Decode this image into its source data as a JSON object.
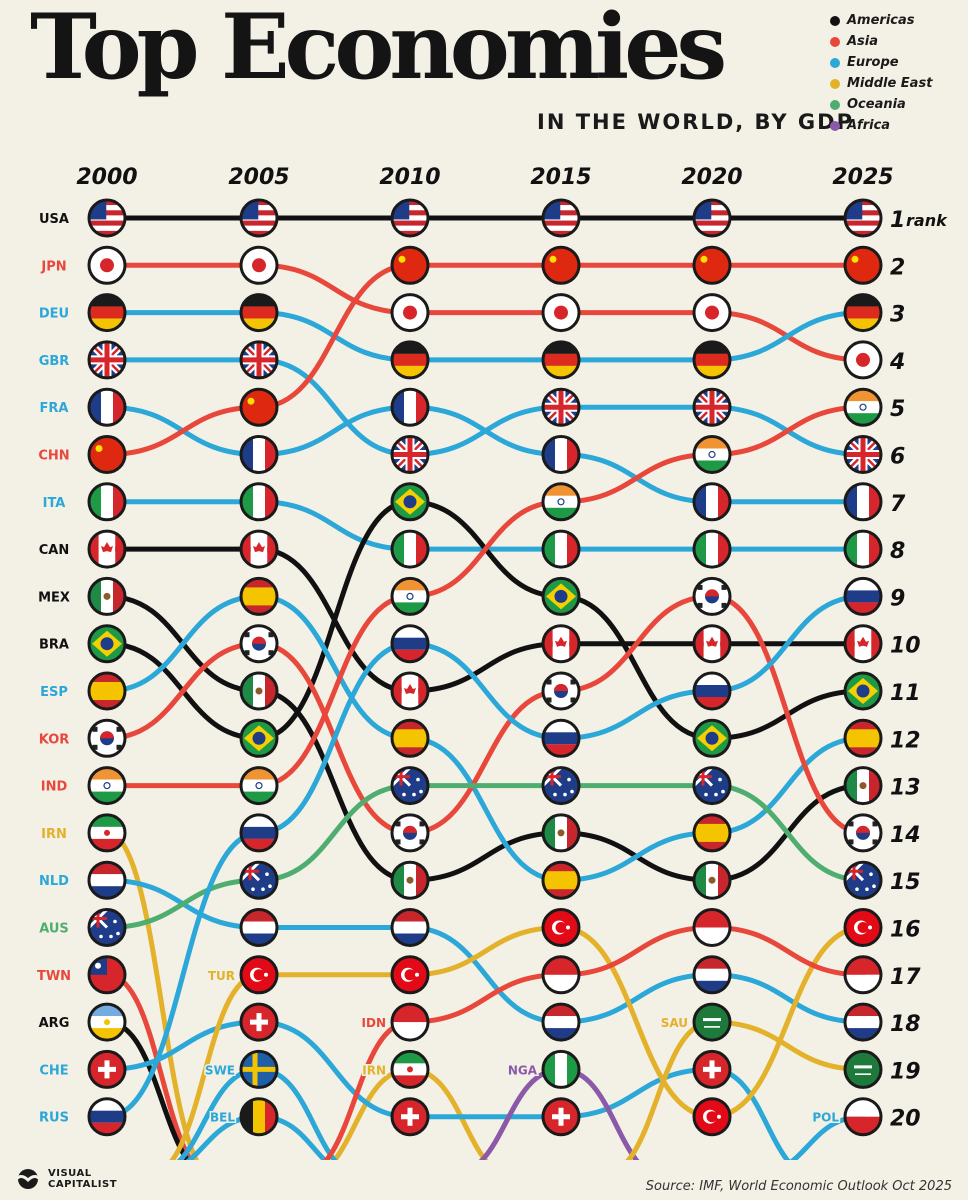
{
  "title": "Top Economies",
  "subtitle": "IN THE WORLD, BY GDP",
  "legend": [
    {
      "label": "Americas",
      "color": "#111111"
    },
    {
      "label": "Asia",
      "color": "#e8483b"
    },
    {
      "label": "Europe",
      "color": "#2ba7d8"
    },
    {
      "label": "Middle East",
      "color": "#e3b12a"
    },
    {
      "label": "Oceania",
      "color": "#4fae6f"
    },
    {
      "label": "Africa",
      "color": "#8a5aa8"
    }
  ],
  "brand": {
    "line1": "VISUAL",
    "line2": "CAPITALIST"
  },
  "source": "Source: IMF, World Economic Outlook Oct 2025",
  "chart_data": {
    "type": "bump",
    "x": [
      "2000",
      "2005",
      "2010",
      "2015",
      "2020",
      "2025"
    ],
    "ranks": [
      "1",
      "2",
      "3",
      "4",
      "5",
      "6",
      "7",
      "8",
      "9",
      "10",
      "11",
      "12",
      "13",
      "14",
      "15",
      "16",
      "17",
      "18",
      "19",
      "20"
    ],
    "rank_suffix": "rank",
    "row_labels_2000": [
      "USA",
      "JPN",
      "DEU",
      "GBR",
      "FRA",
      "CHN",
      "ITA",
      "CAN",
      "MEX",
      "BRA",
      "ESP",
      "KOR",
      "IND",
      "IRN",
      "NLD",
      "AUS",
      "TWN",
      "ARG",
      "CHE",
      "RUS"
    ],
    "entry_labels": [
      {
        "text": "TUR",
        "year": "2005",
        "rank": 17,
        "region": "Middle East"
      },
      {
        "text": "SWE",
        "year": "2005",
        "rank": 19,
        "region": "Europe"
      },
      {
        "text": "BEL",
        "year": "2005",
        "rank": 20,
        "region": "Europe"
      },
      {
        "text": "IDN",
        "year": "2010",
        "rank": 18,
        "region": "Asia"
      },
      {
        "text": "IRN",
        "year": "2010",
        "rank": 19,
        "region": "Middle East"
      },
      {
        "text": "NGA",
        "year": "2015",
        "rank": 19,
        "region": "Africa"
      },
      {
        "text": "SAU",
        "year": "2020",
        "rank": 18,
        "region": "Middle East"
      },
      {
        "text": "POL",
        "year": "2025",
        "rank": 20,
        "region": "Europe"
      }
    ],
    "series": [
      {
        "code": "USA",
        "region": "Americas",
        "ranks": [
          1,
          1,
          1,
          1,
          1,
          1
        ]
      },
      {
        "code": "JPN",
        "region": "Asia",
        "ranks": [
          2,
          2,
          3,
          3,
          3,
          4
        ]
      },
      {
        "code": "DEU",
        "region": "Europe",
        "ranks": [
          3,
          3,
          4,
          4,
          4,
          3
        ]
      },
      {
        "code": "GBR",
        "region": "Europe",
        "ranks": [
          4,
          4,
          6,
          5,
          5,
          6
        ]
      },
      {
        "code": "FRA",
        "region": "Europe",
        "ranks": [
          5,
          6,
          5,
          6,
          7,
          7
        ]
      },
      {
        "code": "CHN",
        "region": "Asia",
        "ranks": [
          6,
          5,
          2,
          2,
          2,
          2
        ]
      },
      {
        "code": "ITA",
        "region": "Europe",
        "ranks": [
          7,
          7,
          8,
          8,
          8,
          8
        ]
      },
      {
        "code": "CAN",
        "region": "Americas",
        "ranks": [
          8,
          8,
          11,
          10,
          10,
          10
        ]
      },
      {
        "code": "MEX",
        "region": "Americas",
        "ranks": [
          9,
          11,
          15,
          14,
          15,
          13
        ]
      },
      {
        "code": "BRA",
        "region": "Americas",
        "ranks": [
          10,
          12,
          7,
          9,
          12,
          11
        ]
      },
      {
        "code": "ESP",
        "region": "Europe",
        "ranks": [
          11,
          9,
          12,
          15,
          14,
          12
        ]
      },
      {
        "code": "KOR",
        "region": "Asia",
        "ranks": [
          12,
          10,
          14,
          11,
          9,
          14
        ]
      },
      {
        "code": "IND",
        "region": "Asia",
        "ranks": [
          13,
          13,
          9,
          7,
          6,
          5
        ]
      },
      {
        "code": "IRN",
        "region": "Middle East",
        "ranks": [
          14,
          null,
          19,
          null,
          null,
          null
        ]
      },
      {
        "code": "NLD",
        "region": "Europe",
        "ranks": [
          15,
          16,
          16,
          18,
          17,
          18
        ]
      },
      {
        "code": "AUS",
        "region": "Oceania",
        "ranks": [
          16,
          15,
          13,
          13,
          13,
          15
        ]
      },
      {
        "code": "TWN",
        "region": "Asia",
        "ranks": [
          17,
          null,
          null,
          null,
          null,
          null
        ]
      },
      {
        "code": "ARG",
        "region": "Americas",
        "ranks": [
          18,
          null,
          null,
          null,
          null,
          null
        ]
      },
      {
        "code": "CHE",
        "region": "Europe",
        "ranks": [
          19,
          18,
          20,
          20,
          19,
          null
        ]
      },
      {
        "code": "RUS",
        "region": "Europe",
        "ranks": [
          20,
          14,
          10,
          12,
          11,
          9
        ]
      },
      {
        "code": "TUR",
        "region": "Middle East",
        "ranks": [
          null,
          17,
          17,
          16,
          20,
          16
        ]
      },
      {
        "code": "SWE",
        "region": "Europe",
        "ranks": [
          null,
          19,
          null,
          null,
          null,
          null
        ]
      },
      {
        "code": "BEL",
        "region": "Europe",
        "ranks": [
          null,
          20,
          null,
          null,
          null,
          null
        ]
      },
      {
        "code": "IDN",
        "region": "Asia",
        "ranks": [
          null,
          null,
          18,
          17,
          16,
          17
        ]
      },
      {
        "code": "NGA",
        "region": "Africa",
        "ranks": [
          null,
          null,
          null,
          19,
          null,
          null
        ]
      },
      {
        "code": "SAU",
        "region": "Middle East",
        "ranks": [
          null,
          null,
          null,
          null,
          18,
          19
        ]
      },
      {
        "code": "POL",
        "region": "Europe",
        "ranks": [
          null,
          null,
          null,
          null,
          null,
          20
        ]
      }
    ],
    "flag_colors": {
      "USA": [
        "#c8262d",
        "#ffffff",
        "#1f3c88"
      ],
      "JPN": [
        "#ffffff",
        "#d7262b"
      ],
      "DEU": [
        "#1a1a1a",
        "#dd2a1f",
        "#f5c400"
      ],
      "GBR": [
        "#1f3c88",
        "#ffffff",
        "#d7262b"
      ],
      "FRA": [
        "#1f3c88",
        "#ffffff",
        "#d7262b"
      ],
      "CHN": [
        "#de2910",
        "#ffde00"
      ],
      "ITA": [
        "#1e9a46",
        "#ffffff",
        "#d7262b"
      ],
      "CAN": [
        "#d7262b",
        "#ffffff"
      ],
      "MEX": [
        "#1e8a46",
        "#ffffff",
        "#c8262d"
      ],
      "BRA": [
        "#1e9a46",
        "#f5d000",
        "#1f3c88"
      ],
      "ESP": [
        "#c8262d",
        "#f5c400"
      ],
      "KOR": [
        "#ffffff",
        "#d7262b",
        "#1f3c88"
      ],
      "IND": [
        "#f09433",
        "#ffffff",
        "#1e9a46"
      ],
      "IRN": [
        "#1e9a46",
        "#ffffff",
        "#d7262b"
      ],
      "NLD": [
        "#c8262d",
        "#ffffff",
        "#1f3c88"
      ],
      "AUS": [
        "#1f3c88",
        "#ffffff",
        "#d7262b"
      ],
      "TWN": [
        "#d7262b",
        "#1f3c88",
        "#ffffff"
      ],
      "ARG": [
        "#74acdf",
        "#ffffff",
        "#f5c400"
      ],
      "CHE": [
        "#d7262b",
        "#ffffff"
      ],
      "RUS": [
        "#ffffff",
        "#1f3c88",
        "#d7262b"
      ],
      "TUR": [
        "#e30a17",
        "#ffffff"
      ],
      "SWE": [
        "#1f5fa8",
        "#f5c400"
      ],
      "BEL": [
        "#1a1a1a",
        "#f5c400",
        "#d7262b"
      ],
      "IDN": [
        "#d7262b",
        "#ffffff"
      ],
      "NGA": [
        "#1e9a46",
        "#ffffff"
      ],
      "SAU": [
        "#1e7a3a",
        "#ffffff"
      ],
      "POL": [
        "#ffffff",
        "#d7262b"
      ]
    }
  }
}
